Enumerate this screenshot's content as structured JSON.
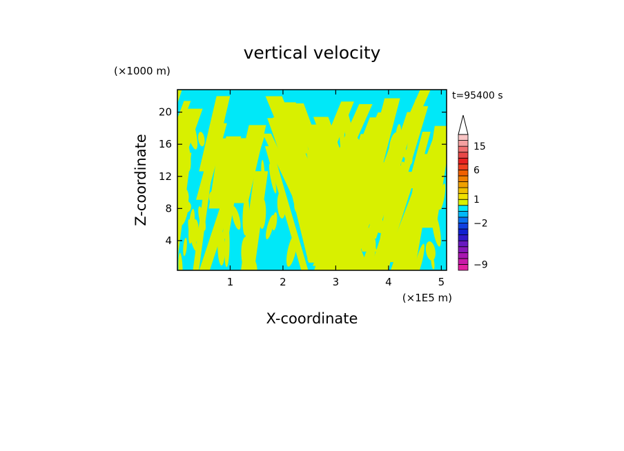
{
  "chart_data": {
    "type": "heatmap",
    "title": "vertical velocity",
    "xlabel": "X-coordinate",
    "ylabel": "Z-coordinate",
    "x_unit": "(×1E5 m)",
    "y_unit": "(×1000 m)",
    "time_label": "t=95400 s",
    "xlim": [
      0,
      5.1
    ],
    "ylim": [
      0.3,
      22.8
    ],
    "x_ticks": [
      1,
      2,
      3,
      4,
      5
    ],
    "y_ticks": [
      4,
      8,
      12,
      16,
      20
    ],
    "colorbar": {
      "levels": [
        -10,
        -9,
        -8,
        -7,
        -6,
        -5,
        -4,
        -3,
        -2,
        -1,
        0,
        0.5,
        1,
        2,
        3,
        4,
        5,
        6,
        8,
        10,
        12,
        15,
        18,
        21
      ],
      "colors": [
        "#e020a0",
        "#c81aa8",
        "#a818b0",
        "#8818b8",
        "#6818c0",
        "#3018c8",
        "#1020d0",
        "#1040e0",
        "#0a70f0",
        "#00b8f8",
        "#00e8f8",
        "#d8f000",
        "#f0e000",
        "#f0c000",
        "#f0a000",
        "#f08000",
        "#f06000",
        "#f04020",
        "#e82020",
        "#e84848",
        "#f07070",
        "#f4a0a0",
        "#f8c4c4"
      ],
      "tick_labels": [
        "15",
        "6",
        "1",
        "−2",
        "−9"
      ],
      "tick_values": [
        15,
        6,
        1,
        -2,
        -9
      ]
    },
    "dominant_fields": [
      {
        "name": "negative",
        "color": "#00e8f8"
      },
      {
        "name": "positive",
        "color": "#d8f000"
      }
    ]
  }
}
